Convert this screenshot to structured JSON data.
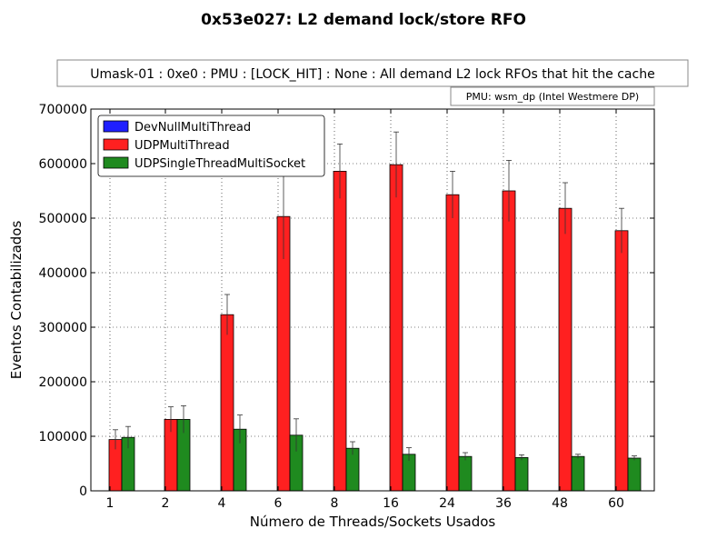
{
  "chart_data": {
    "type": "bar",
    "title": "0x53e027: L2 demand lock/store RFO",
    "subtitle": "Umask-01 : 0xe0 : PMU : [LOCK_HIT] : None : All demand L2 lock RFOs that hit the cache",
    "annotation": "PMU: wsm_dp (Intel Westmere DP)",
    "xlabel": "Número de Threads/Sockets Usados",
    "ylabel": "Eventos Contabilizados",
    "ylim": [
      0,
      700000
    ],
    "yticks": [
      0,
      100000,
      200000,
      300000,
      400000,
      500000,
      600000,
      700000
    ],
    "grid": true,
    "legend_position": "top-left",
    "categories": [
      "1",
      "2",
      "4",
      "6",
      "8",
      "16",
      "24",
      "36",
      "48",
      "60"
    ],
    "series": [
      {
        "name": "DevNullMultiThread",
        "color": "#1f1fff",
        "values": [
          0,
          0,
          0,
          0,
          0,
          0,
          0,
          0,
          0,
          0
        ],
        "errors": [
          0,
          0,
          0,
          0,
          0,
          0,
          0,
          0,
          0,
          0
        ]
      },
      {
        "name": "UDPMultiThread",
        "color": "#ff2020",
        "values": [
          94000,
          131000,
          323000,
          503000,
          586000,
          598000,
          543000,
          550000,
          518000,
          477000
        ],
        "errors": [
          18000,
          23000,
          37000,
          78000,
          50000,
          60000,
          43000,
          56000,
          47000,
          41000
        ]
      },
      {
        "name": "UDPSingleThreadMultiSocket",
        "color": "#1f8a1f",
        "values": [
          98000,
          131000,
          113000,
          102000,
          78000,
          67000,
          63000,
          61000,
          63000,
          60000
        ],
        "errors": [
          20000,
          25000,
          26000,
          30000,
          12000,
          12000,
          7000,
          5000,
          4000,
          4000
        ]
      }
    ]
  }
}
